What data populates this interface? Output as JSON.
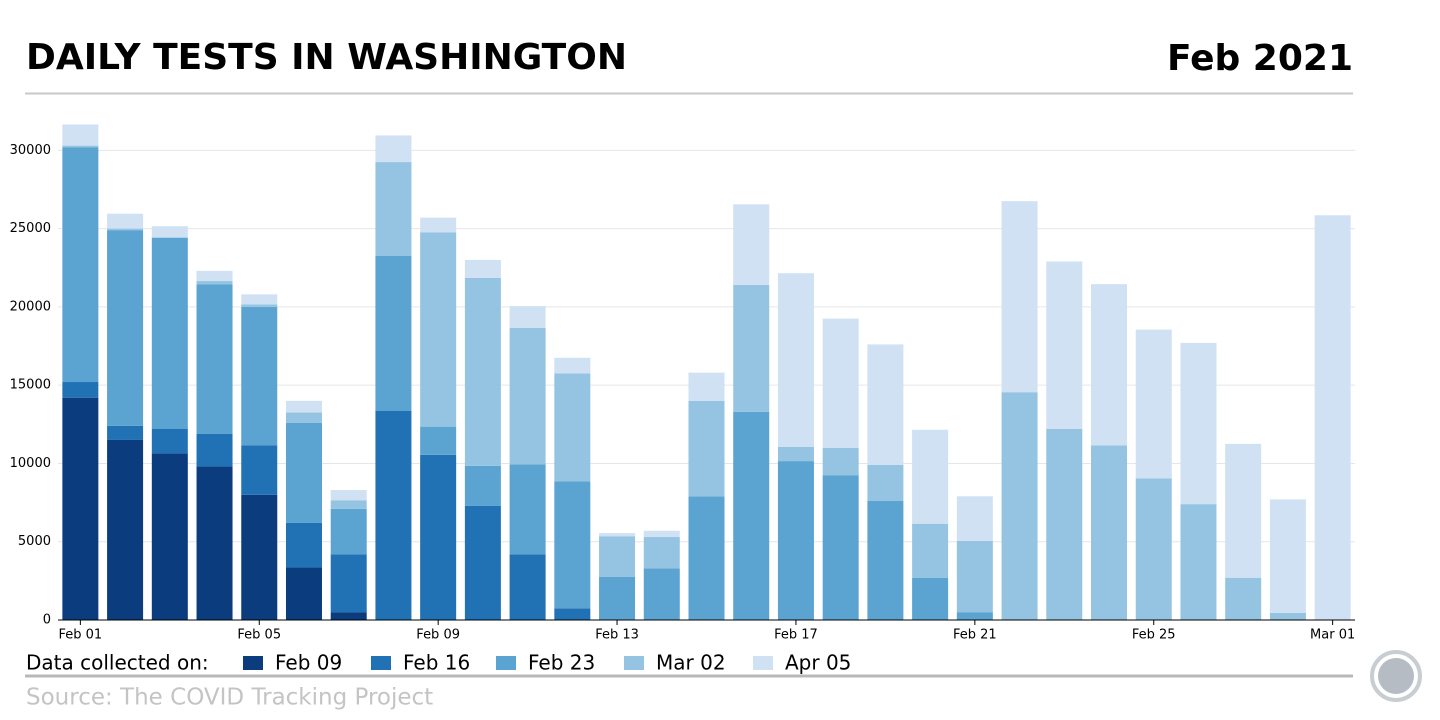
{
  "chart_data": {
    "type": "stacked-bar",
    "title": "DAILY TESTS IN WASHINGTON",
    "subtitle": "Feb 2021",
    "legend_title": "Data collected on:",
    "source": "Source: The COVID Tracking Project",
    "categories": [
      "Feb 01",
      null,
      null,
      null,
      "Feb 05",
      null,
      null,
      null,
      "Feb 09",
      null,
      null,
      null,
      "Feb 13",
      null,
      null,
      null,
      "Feb 17",
      null,
      null,
      null,
      "Feb 21",
      null,
      null,
      null,
      "Feb 25",
      null,
      null,
      null,
      "Mar 01"
    ],
    "series": [
      {
        "name": "Feb 09",
        "color": "#0b3c7e",
        "values": [
          14200,
          11500,
          10650,
          9800,
          8000,
          3350,
          500,
          0,
          0,
          0,
          0,
          0,
          0,
          0,
          0,
          0,
          0,
          0,
          0,
          0,
          0,
          0,
          0,
          0,
          0,
          0,
          0,
          0,
          0
        ]
      },
      {
        "name": "Feb 16",
        "color": "#2171b5",
        "values": [
          1000,
          900,
          1550,
          2100,
          3150,
          2850,
          3700,
          13350,
          10550,
          7300,
          4200,
          750,
          0,
          0,
          0,
          0,
          0,
          0,
          0,
          0,
          0,
          0,
          0,
          0,
          0,
          0,
          0,
          0,
          0
        ]
      },
      {
        "name": "Feb 23",
        "color": "#5ba3d0",
        "values": [
          15000,
          12500,
          12200,
          9550,
          8850,
          6400,
          2900,
          9900,
          1800,
          2550,
          5750,
          8100,
          2750,
          3300,
          7900,
          13300,
          10150,
          9250,
          7600,
          2700,
          500,
          0,
          0,
          0,
          0,
          0,
          0,
          0,
          0
        ]
      },
      {
        "name": "Mar 02",
        "color": "#94c4e1",
        "values": [
          100,
          100,
          50,
          200,
          150,
          650,
          550,
          6000,
          12400,
          12000,
          8700,
          6900,
          2600,
          2000,
          6100,
          8100,
          900,
          1750,
          2300,
          3450,
          4550,
          14550,
          12200,
          11150,
          9050,
          7400,
          2700,
          450,
          0
        ]
      },
      {
        "name": "Apr 05",
        "color": "#cfe1f2",
        "values": [
          1350,
          950,
          700,
          650,
          650,
          750,
          650,
          1700,
          950,
          1150,
          1400,
          1000,
          200,
          400,
          1800,
          5150,
          11100,
          8250,
          7700,
          6000,
          2850,
          12200,
          10700,
          10300,
          9500,
          10300,
          8550,
          7250,
          25850
        ]
      }
    ],
    "ylim": [
      0,
      32000
    ],
    "yticks": [
      0,
      5000,
      10000,
      15000,
      20000,
      25000,
      30000
    ],
    "grid": true
  }
}
